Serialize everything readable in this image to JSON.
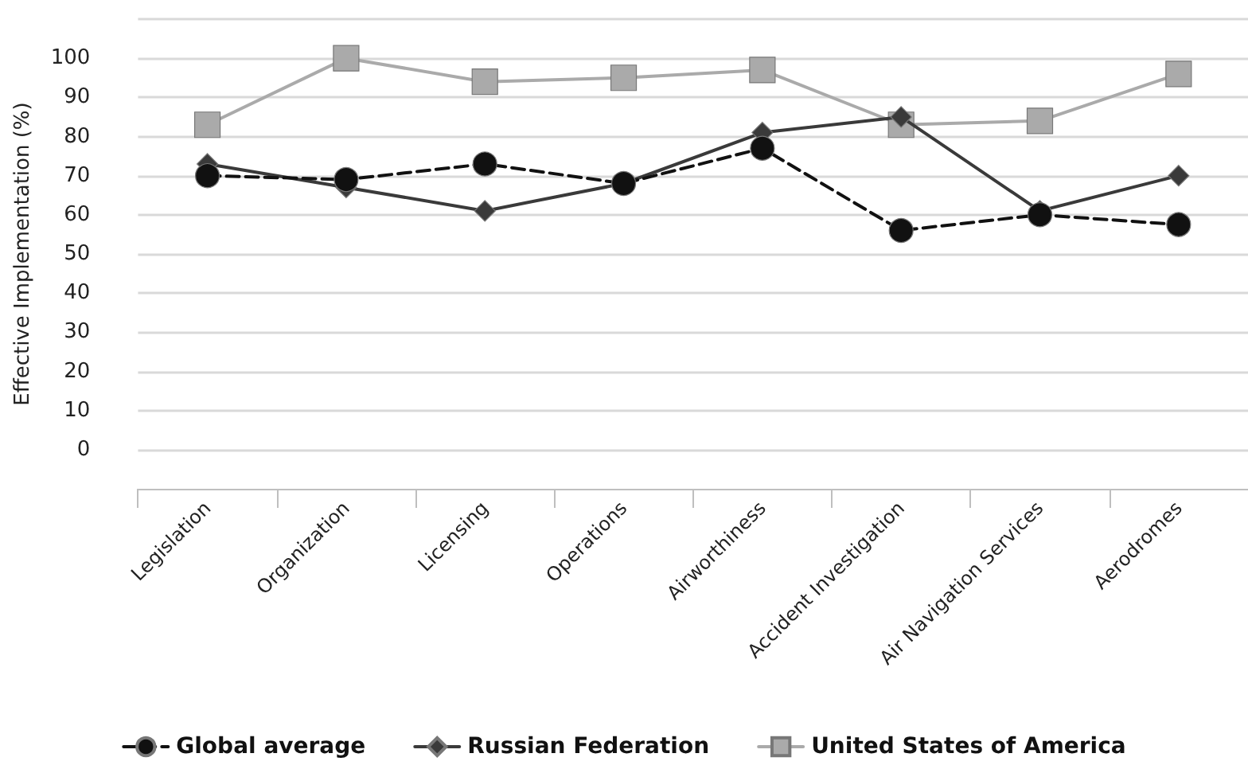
{
  "chart_data": {
    "type": "line",
    "ylabel": "Effective Implementation (%)",
    "categories": [
      "Legislation",
      "Organization",
      "Licensing",
      "Operations",
      "Airworthiness",
      "Accident Investigation",
      "Air Navigation Services",
      "Aerodromes"
    ],
    "series": [
      {
        "name": "Global average",
        "color": "#111111",
        "marker": "circle",
        "line_style": "dashed",
        "values": [
          70,
          69,
          73,
          68,
          77,
          56,
          60,
          57.5
        ]
      },
      {
        "name": "Russian Federation",
        "color": "#3a3a3a",
        "marker": "diamond",
        "line_style": "solid",
        "values": [
          73,
          67,
          61,
          68,
          81,
          85,
          61,
          70
        ]
      },
      {
        "name": "United States of America",
        "color": "#aaaaaa",
        "marker": "square",
        "line_style": "solid",
        "values": [
          83,
          100,
          94,
          95,
          97,
          83,
          84,
          96
        ]
      }
    ],
    "ylim": [
      -10,
      110
    ],
    "yticks": [
      0,
      10,
      20,
      30,
      40,
      50,
      60,
      70,
      80,
      90,
      100,
      {
        "value": 110,
        "label": null
      }
    ],
    "grid": "y",
    "legend": "bottom"
  }
}
